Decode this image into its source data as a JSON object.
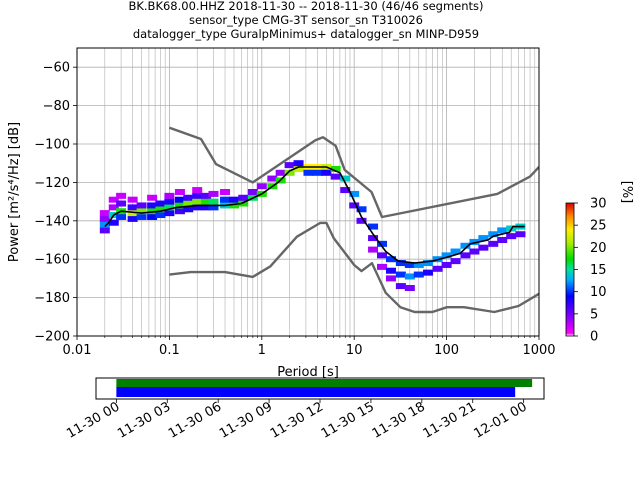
{
  "chart_data": {
    "type": "heatmap",
    "title_lines": [
      "BK.BK68.00.HHZ   2018-11-30 -- 2018-11-30  (46/46 segments)",
      "sensor_type CMG-3T sensor_sn T310026",
      "datalogger_type GuralpMinimus+ datalogger_sn MINP-D959"
    ],
    "xlabel": "Period [s]",
    "ylabel": "Power [m²/s⁴/Hz] [dB]",
    "xscale": "log",
    "xlim": [
      0.01,
      1000
    ],
    "ylim": [
      -200,
      -50
    ],
    "grid": true,
    "x_ticks": [
      {
        "value": 0.01,
        "label": "0.01"
      },
      {
        "value": 0.1,
        "label": "0.1"
      },
      {
        "value": 1,
        "label": "1"
      },
      {
        "value": 10,
        "label": "10"
      },
      {
        "value": 100,
        "label": "100"
      },
      {
        "value": 1000,
        "label": "1000"
      }
    ],
    "y_ticks": [
      {
        "value": -60,
        "label": "−60"
      },
      {
        "value": -80,
        "label": "−80"
      },
      {
        "value": -100,
        "label": "−100"
      },
      {
        "value": -120,
        "label": "−120"
      },
      {
        "value": -140,
        "label": "−140"
      },
      {
        "value": -160,
        "label": "−160"
      },
      {
        "value": -180,
        "label": "−180"
      },
      {
        "value": -200,
        "label": "−200"
      }
    ],
    "series": [
      {
        "name": "New High Noise Model",
        "color": "#666666",
        "points": [
          [
            0.1,
            -91.5
          ],
          [
            0.22,
            -97.4
          ],
          [
            0.32,
            -110.5
          ],
          [
            0.8,
            -120
          ],
          [
            3.8,
            -98
          ],
          [
            4.6,
            -96.5
          ],
          [
            6.3,
            -101
          ],
          [
            7.9,
            -113.5
          ],
          [
            15.4,
            -125
          ],
          [
            20,
            -138
          ],
          [
            354,
            -126
          ],
          [
            800,
            -117
          ],
          [
            1000,
            -112
          ]
        ]
      },
      {
        "name": "New Low Noise Model",
        "color": "#666666",
        "points": [
          [
            0.1,
            -168
          ],
          [
            0.17,
            -166.7
          ],
          [
            0.4,
            -166.7
          ],
          [
            0.8,
            -169.2
          ],
          [
            1.24,
            -163.7
          ],
          [
            2.4,
            -148.3
          ],
          [
            4.3,
            -141.1
          ],
          [
            5,
            -141.1
          ],
          [
            6,
            -149
          ],
          [
            10,
            -163
          ],
          [
            12,
            -166.2
          ],
          [
            15.6,
            -162.1
          ],
          [
            21.9,
            -177.5
          ],
          [
            31.6,
            -185
          ],
          [
            45,
            -187.5
          ],
          [
            70,
            -187.5
          ],
          [
            101,
            -185
          ],
          [
            154,
            -185
          ],
          [
            328,
            -187.5
          ],
          [
            600,
            -184.4
          ],
          [
            1000,
            -178
          ]
        ]
      },
      {
        "name": "Mode",
        "color": "#000000",
        "points": [
          [
            0.02,
            -143
          ],
          [
            0.022,
            -141
          ],
          [
            0.025,
            -137
          ],
          [
            0.03,
            -135
          ],
          [
            0.05,
            -136
          ],
          [
            0.08,
            -135
          ],
          [
            0.12,
            -133
          ],
          [
            0.2,
            -132
          ],
          [
            0.4,
            -132
          ],
          [
            0.6,
            -131
          ],
          [
            1,
            -126
          ],
          [
            1.5,
            -120
          ],
          [
            2,
            -114
          ],
          [
            2.5,
            -112
          ],
          [
            5,
            -112
          ],
          [
            7,
            -115
          ],
          [
            9,
            -125
          ],
          [
            12,
            -138
          ],
          [
            16,
            -147
          ],
          [
            22,
            -156
          ],
          [
            30,
            -161
          ],
          [
            45,
            -162
          ],
          [
            70,
            -161
          ],
          [
            100,
            -159
          ],
          [
            140,
            -157
          ],
          [
            180,
            -152
          ],
          [
            280,
            -150
          ],
          [
            320,
            -148
          ],
          [
            480,
            -146
          ],
          [
            520,
            -143
          ],
          [
            700,
            -143
          ]
        ]
      }
    ],
    "density_cells": [
      [
        0.02,
        -145,
        6
      ],
      [
        0.02,
        -142,
        12
      ],
      [
        0.02,
        -139,
        4
      ],
      [
        0.02,
        -136,
        2
      ],
      [
        0.025,
        -141,
        8
      ],
      [
        0.025,
        -137,
        14
      ],
      [
        0.025,
        -133,
        3
      ],
      [
        0.025,
        -129,
        2
      ],
      [
        0.03,
        -138,
        10
      ],
      [
        0.03,
        -135,
        18
      ],
      [
        0.03,
        -131,
        6
      ],
      [
        0.03,
        -127,
        2
      ],
      [
        0.04,
        -139,
        8
      ],
      [
        0.04,
        -136,
        22
      ],
      [
        0.04,
        -133,
        7
      ],
      [
        0.04,
        -129,
        2
      ],
      [
        0.05,
        -138,
        10
      ],
      [
        0.05,
        -135,
        20
      ],
      [
        0.05,
        -132,
        6
      ],
      [
        0.065,
        -138,
        9
      ],
      [
        0.065,
        -135,
        18
      ],
      [
        0.065,
        -132,
        8
      ],
      [
        0.065,
        -128,
        2
      ],
      [
        0.08,
        -137,
        10
      ],
      [
        0.08,
        -134,
        18
      ],
      [
        0.08,
        -131,
        8
      ],
      [
        0.1,
        -136,
        8
      ],
      [
        0.1,
        -133,
        16
      ],
      [
        0.1,
        -130,
        8
      ],
      [
        0.1,
        -127,
        3
      ],
      [
        0.13,
        -135,
        7
      ],
      [
        0.13,
        -132,
        18
      ],
      [
        0.13,
        -129,
        9
      ],
      [
        0.13,
        -125,
        2
      ],
      [
        0.16,
        -134,
        8
      ],
      [
        0.16,
        -131,
        20
      ],
      [
        0.16,
        -128,
        7
      ],
      [
        0.2,
        -133,
        8
      ],
      [
        0.2,
        -130,
        20
      ],
      [
        0.2,
        -127,
        7
      ],
      [
        0.2,
        -124,
        2
      ],
      [
        0.25,
        -133,
        8
      ],
      [
        0.25,
        -130,
        18
      ],
      [
        0.25,
        -127,
        6
      ],
      [
        0.3,
        -133,
        10
      ],
      [
        0.3,
        -130,
        16
      ],
      [
        0.3,
        -126,
        3
      ],
      [
        0.4,
        -132,
        14
      ],
      [
        0.4,
        -129,
        10
      ],
      [
        0.4,
        -125,
        2
      ],
      [
        0.5,
        -132,
        18
      ],
      [
        0.5,
        -129,
        8
      ],
      [
        0.63,
        -131,
        18
      ],
      [
        0.63,
        -128,
        6
      ],
      [
        0.8,
        -128,
        16
      ],
      [
        0.8,
        -125,
        5
      ],
      [
        1.0,
        -126,
        18
      ],
      [
        1.0,
        -122,
        4
      ],
      [
        1.3,
        -122,
        18
      ],
      [
        1.3,
        -118,
        4
      ],
      [
        1.6,
        -119,
        18
      ],
      [
        1.6,
        -115,
        4
      ],
      [
        2.0,
        -115,
        20
      ],
      [
        2.0,
        -111,
        6
      ],
      [
        2.5,
        -113,
        22
      ],
      [
        2.5,
        -110,
        8
      ],
      [
        3.2,
        -112,
        24
      ],
      [
        3.2,
        -115,
        10
      ],
      [
        4.0,
        -112,
        24
      ],
      [
        4.0,
        -115,
        10
      ],
      [
        5.0,
        -112,
        22
      ],
      [
        5.0,
        -115,
        8
      ],
      [
        6.3,
        -113,
        18
      ],
      [
        6.3,
        -117,
        6
      ],
      [
        8.0,
        -118,
        14
      ],
      [
        8.0,
        -124,
        6
      ],
      [
        10,
        -126,
        12
      ],
      [
        10,
        -132,
        6
      ],
      [
        12,
        -134,
        10
      ],
      [
        12,
        -140,
        6
      ],
      [
        16,
        -143,
        10
      ],
      [
        16,
        -149,
        6
      ],
      [
        16,
        -155,
        3
      ],
      [
        20,
        -152,
        10
      ],
      [
        20,
        -158,
        6
      ],
      [
        20,
        -164,
        3
      ],
      [
        25,
        -160,
        10
      ],
      [
        25,
        -166,
        8
      ],
      [
        25,
        -170,
        4
      ],
      [
        32,
        -162,
        10
      ],
      [
        32,
        -168,
        10
      ],
      [
        32,
        -174,
        6
      ],
      [
        40,
        -163,
        10
      ],
      [
        40,
        -169,
        12
      ],
      [
        40,
        -175,
        5
      ],
      [
        50,
        -163,
        12
      ],
      [
        50,
        -168,
        10
      ],
      [
        63,
        -162,
        12
      ],
      [
        63,
        -167,
        8
      ],
      [
        80,
        -160,
        12
      ],
      [
        80,
        -165,
        6
      ],
      [
        100,
        -158,
        12
      ],
      [
        100,
        -163,
        6
      ],
      [
        125,
        -156,
        12
      ],
      [
        125,
        -161,
        6
      ],
      [
        160,
        -153,
        12
      ],
      [
        160,
        -158,
        6
      ],
      [
        200,
        -151,
        12
      ],
      [
        200,
        -156,
        6
      ],
      [
        250,
        -149,
        12
      ],
      [
        250,
        -154,
        6
      ],
      [
        320,
        -147,
        12
      ],
      [
        320,
        -152,
        6
      ],
      [
        400,
        -145,
        12
      ],
      [
        400,
        -150,
        6
      ],
      [
        500,
        -144,
        14
      ],
      [
        500,
        -148,
        6
      ],
      [
        630,
        -143,
        14
      ],
      [
        630,
        -147,
        6
      ]
    ],
    "colorbar": {
      "label": "[%]",
      "range": [
        0,
        30
      ],
      "ticks": [
        {
          "value": 0,
          "label": "0"
        },
        {
          "value": 5,
          "label": "5"
        },
        {
          "value": 10,
          "label": "10"
        },
        {
          "value": 15,
          "label": "15"
        },
        {
          "value": 20,
          "label": "20"
        },
        {
          "value": 25,
          "label": "25"
        },
        {
          "value": 30,
          "label": "30"
        }
      ]
    },
    "coverage": {
      "time_ticks": [
        {
          "value": 0,
          "label": "11-30 00"
        },
        {
          "value": 3,
          "label": "11-30 03"
        },
        {
          "value": 6,
          "label": "11-30 06"
        },
        {
          "value": 9,
          "label": "11-30 09"
        },
        {
          "value": 12,
          "label": "11-30 12"
        },
        {
          "value": 15,
          "label": "11-30 15"
        },
        {
          "value": 18,
          "label": "11-30 18"
        },
        {
          "value": 21,
          "label": "11-30 21"
        },
        {
          "value": 24,
          "label": "12-01 00"
        }
      ],
      "xlim_hours": [
        -1.2,
        25.2
      ],
      "data_bar": {
        "start_h": 0,
        "end_h": 24.5,
        "color": "#008000"
      },
      "psd_bar": {
        "start_h": 0,
        "end_h": 23.5,
        "color": "#0000ff"
      }
    }
  }
}
